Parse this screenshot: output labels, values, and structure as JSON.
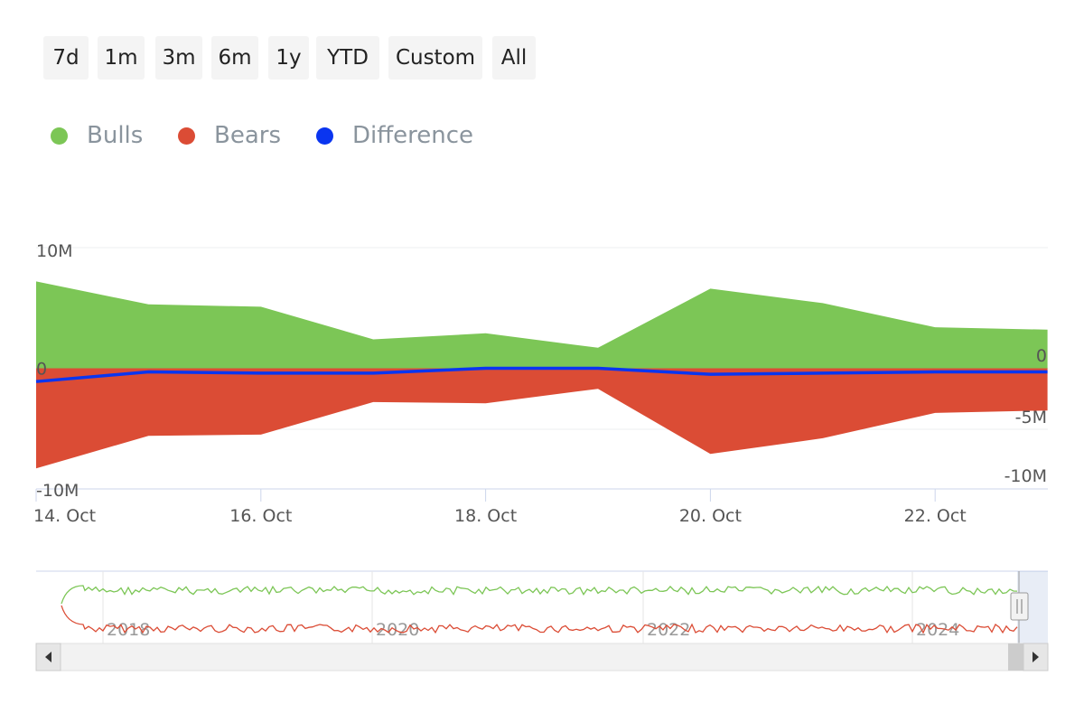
{
  "range_selector": {
    "buttons": [
      "7d",
      "1m",
      "3m",
      "6m",
      "1y",
      "YTD",
      "Custom",
      "All"
    ]
  },
  "legend": [
    {
      "label": "Bulls",
      "color": "#7cc656"
    },
    {
      "label": "Bears",
      "color": "#db4c35"
    },
    {
      "label": "Difference",
      "color": "#0a35f0"
    }
  ],
  "chart_data": {
    "type": "area",
    "x": [
      "14. Oct",
      "15. Oct",
      "16. Oct",
      "17. Oct",
      "18. Oct",
      "19. Oct",
      "20. Oct",
      "21. Oct",
      "22. Oct",
      "23. Oct"
    ],
    "x_tick_labels": [
      "14. Oct",
      "16. Oct",
      "18. Oct",
      "20. Oct",
      "22. Oct"
    ],
    "series": [
      {
        "name": "Bulls",
        "type": "area",
        "color": "#7cc656",
        "values": [
          7.2,
          5.3,
          5.1,
          2.4,
          2.9,
          1.7,
          6.6,
          5.4,
          3.4,
          3.2
        ]
      },
      {
        "name": "Bears",
        "type": "area",
        "color": "#db4c35",
        "values": [
          -8.3,
          -5.6,
          -5.5,
          -2.8,
          -2.9,
          -1.7,
          -7.1,
          -5.8,
          -3.7,
          -3.5
        ]
      },
      {
        "name": "Difference",
        "type": "line",
        "color": "#0a35f0",
        "values": [
          -1.1,
          -0.3,
          -0.4,
          -0.4,
          0.0,
          0.0,
          -0.5,
          -0.4,
          -0.3,
          -0.3
        ]
      }
    ],
    "y_left_ticks": [
      "10M",
      "0",
      "-10M"
    ],
    "y_right_ticks": [
      "0",
      "-5M",
      "-10M"
    ],
    "ylim": [
      -10,
      10
    ],
    "y_unit": "M",
    "navigator": {
      "year_labels": [
        "2018",
        "2020",
        "2022",
        "2024"
      ]
    }
  }
}
